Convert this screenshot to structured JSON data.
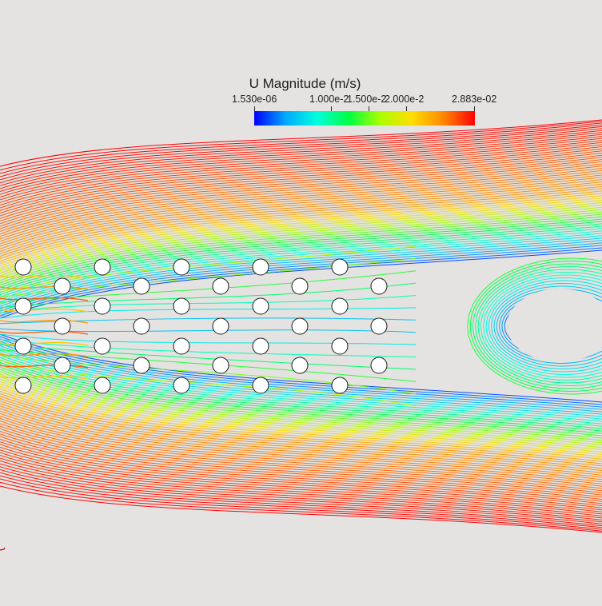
{
  "legend": {
    "title": "U Magnitude (m/s)",
    "min_label": "1.530e-06",
    "tick_labels": [
      "1.000e-2",
      "1.500e-2",
      "2.000e-2"
    ],
    "max_label": "2.883e-02",
    "colormap": [
      "#0000ff",
      "#00aaff",
      "#00ffdd",
      "#00ff44",
      "#aaff00",
      "#ffdd00",
      "#ff8800",
      "#ff0000"
    ]
  },
  "background_color": "#e4e3e1",
  "cylinder_fill": "#ffffff",
  "cylinder_stroke": "#1a1a1a"
}
